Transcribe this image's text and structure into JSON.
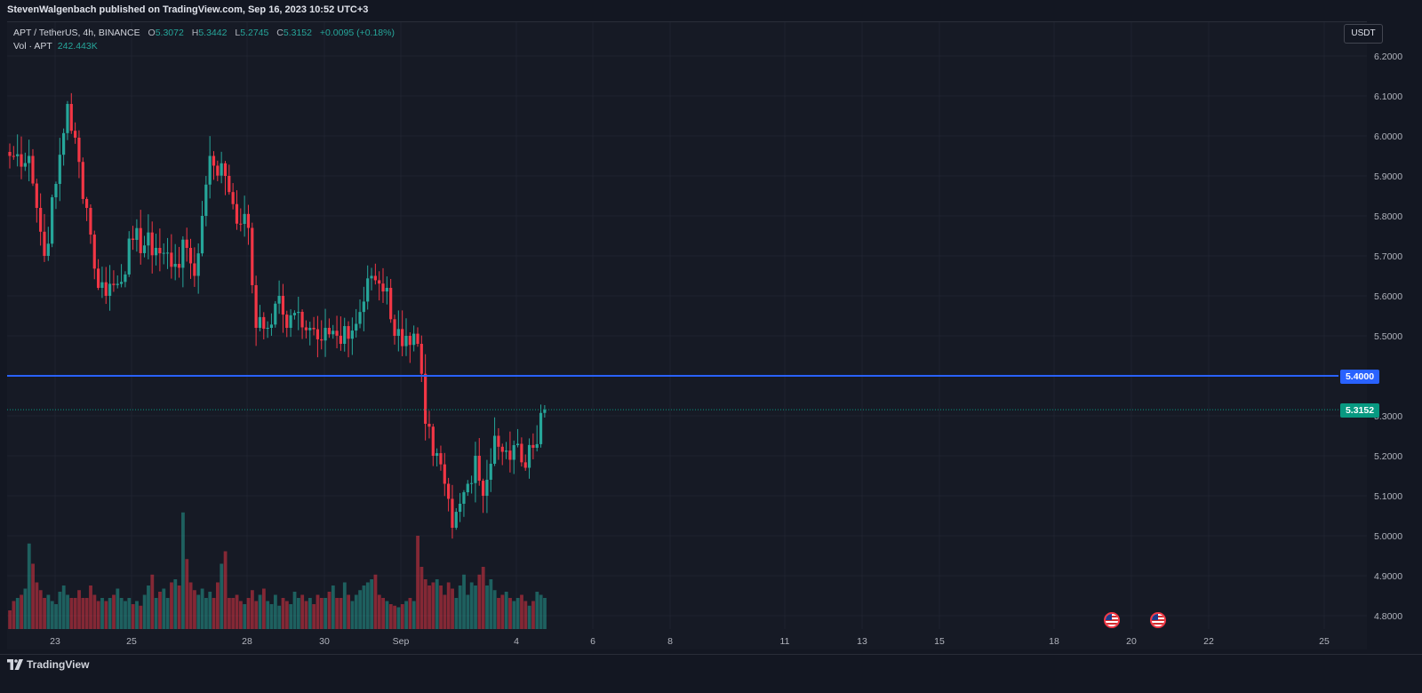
{
  "header": {
    "publisher": "StevenWalgenbach published on TradingView.com, Sep 16, 2023 10:52 UTC+3"
  },
  "legend": {
    "symbol": "APT / TetherUS, 4h, BINANCE",
    "open_label": "O",
    "open_value": "5.3072",
    "high_label": "H",
    "high_value": "5.3442",
    "low_label": "L",
    "low_value": "5.2745",
    "close_label": "C",
    "close_value": "5.3152",
    "change": "+0.0095 (+0.18%)",
    "vol_label": "Vol · APT",
    "vol_value": "242.443K"
  },
  "toolbar": {
    "currency": "USDT"
  },
  "price_tags": {
    "level": "5.4000",
    "last": "5.3152"
  },
  "footer": {
    "brand": "TradingView"
  },
  "colors": {
    "up": "#26a69a",
    "down": "#f23645",
    "level_line": "#2962ff",
    "last_price": "#089981",
    "background": "#161a25"
  },
  "icons": [
    "us-flag-icon",
    "us-flag-icon",
    "tradingview-logo-icon"
  ],
  "chart_data": {
    "type": "candlestick",
    "timeframe": "4h",
    "ylim": [
      4.77,
      6.23
    ],
    "y_ticks": [
      "6.2000",
      "6.1000",
      "6.0000",
      "5.9000",
      "5.8000",
      "5.7000",
      "5.6000",
      "5.5000",
      "5.4000",
      "5.3000",
      "5.2000",
      "5.1000",
      "5.0000",
      "4.9000",
      "4.8000"
    ],
    "x_ticks": [
      "23",
      "25",
      "28",
      "30",
      "Sep",
      "4",
      "6",
      "8",
      "11",
      "13",
      "15",
      "18",
      "20",
      "22",
      "25"
    ],
    "horizontal_line": 5.4,
    "last_price": 5.3152,
    "grid": true,
    "waypoints": [
      [
        0,
        5.95
      ],
      [
        5,
        5.95
      ],
      [
        7,
        5.82
      ],
      [
        9,
        5.7
      ],
      [
        12,
        5.88
      ],
      [
        15,
        6.08
      ],
      [
        20,
        5.82
      ],
      [
        23,
        5.62
      ],
      [
        28,
        5.63
      ],
      [
        32,
        5.74
      ],
      [
        38,
        5.72
      ],
      [
        43,
        5.68
      ],
      [
        46,
        5.72
      ],
      [
        48,
        5.65
      ],
      [
        50,
        5.8
      ],
      [
        52,
        5.95
      ],
      [
        56,
        5.9
      ],
      [
        60,
        5.78
      ],
      [
        62,
        5.77
      ],
      [
        64,
        5.52
      ],
      [
        67,
        5.52
      ],
      [
        70,
        5.6
      ],
      [
        72,
        5.52
      ],
      [
        75,
        5.56
      ],
      [
        78,
        5.52
      ],
      [
        82,
        5.52
      ],
      [
        86,
        5.48
      ],
      [
        90,
        5.53
      ],
      [
        94,
        5.65
      ],
      [
        98,
        5.62
      ],
      [
        100,
        5.5
      ],
      [
        103,
        5.5
      ],
      [
        106,
        5.48
      ],
      [
        108,
        5.28
      ],
      [
        110,
        5.2
      ],
      [
        113,
        5.13
      ],
      [
        115,
        5.02
      ],
      [
        117,
        5.08
      ],
      [
        119,
        5.13
      ],
      [
        121,
        5.2
      ],
      [
        123,
        5.1
      ],
      [
        126,
        5.25
      ],
      [
        128,
        5.21
      ],
      [
        130,
        5.19
      ],
      [
        132,
        5.23
      ],
      [
        134,
        5.17
      ],
      [
        136,
        5.22
      ],
      [
        138,
        5.3072
      ],
      [
        139,
        5.3152
      ]
    ],
    "volume_relative": [
      0.12,
      0.18,
      0.2,
      0.22,
      0.26,
      0.55,
      0.42,
      0.3,
      0.25,
      0.2,
      0.22,
      0.18,
      0.16,
      0.24,
      0.28,
      0.22,
      0.2,
      0.2,
      0.25,
      0.2,
      0.2,
      0.28,
      0.22,
      0.18,
      0.2,
      0.18,
      0.2,
      0.22,
      0.26,
      0.2,
      0.18,
      0.2,
      0.16,
      0.18,
      0.15,
      0.22,
      0.28,
      0.35,
      0.2,
      0.24,
      0.26,
      0.2,
      0.3,
      0.32,
      0.28,
      0.75,
      0.45,
      0.3,
      0.25,
      0.22,
      0.26,
      0.2,
      0.24,
      0.2,
      0.3,
      0.42,
      0.5,
      0.2,
      0.2,
      0.22,
      0.18,
      0.16,
      0.2,
      0.25,
      0.18,
      0.22,
      0.26,
      0.18,
      0.16,
      0.22,
      0.15,
      0.2,
      0.18,
      0.16,
      0.24,
      0.2,
      0.22,
      0.18,
      0.2,
      0.16,
      0.22,
      0.2,
      0.2,
      0.24,
      0.28,
      0.2,
      0.2,
      0.3,
      0.22,
      0.18,
      0.22,
      0.25,
      0.28,
      0.3,
      0.32,
      0.35,
      0.22,
      0.2,
      0.18,
      0.16,
      0.15,
      0.14,
      0.16,
      0.18,
      0.2,
      0.18,
      0.6,
      0.4,
      0.32,
      0.28,
      0.3,
      0.32,
      0.28,
      0.22,
      0.3,
      0.26,
      0.2,
      0.28,
      0.35,
      0.22,
      0.3,
      0.28,
      0.35,
      0.4,
      0.28,
      0.32,
      0.25,
      0.2,
      0.22,
      0.24,
      0.2,
      0.18,
      0.2,
      0.22,
      0.18,
      0.15,
      0.18,
      0.24,
      0.22,
      0.2
    ]
  }
}
